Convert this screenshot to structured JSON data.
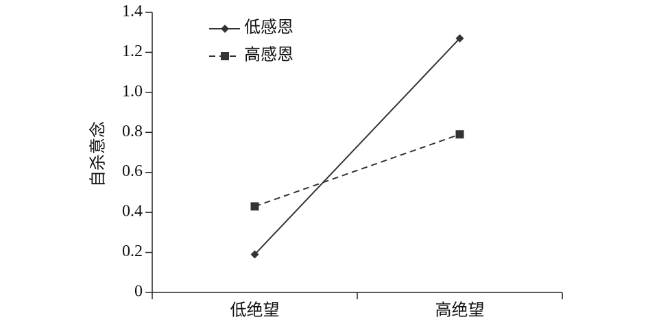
{
  "chart_data": {
    "type": "line",
    "y_label": "自杀意念",
    "categories": [
      "低绝望",
      "高绝望"
    ],
    "series": [
      {
        "name": "低感恩",
        "color": "#333333",
        "line_style": "solid",
        "marker": "diamond",
        "values": [
          0.19,
          1.27
        ]
      },
      {
        "name": "高感恩",
        "color": "#333333",
        "line_style": "dashed",
        "marker": "square",
        "values": [
          0.43,
          0.79
        ]
      }
    ],
    "ylim": [
      0,
      1.4
    ],
    "yticks": [
      0,
      0.2,
      0.4,
      0.6,
      0.8,
      {
        "value": 1,
        "label": "1.0"
      },
      1.2,
      1.4
    ],
    "legend": "upper left"
  }
}
